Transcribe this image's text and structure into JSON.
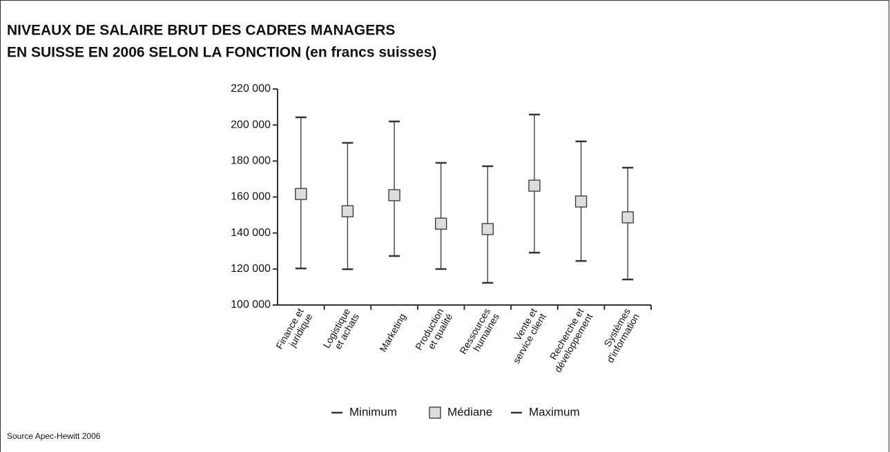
{
  "chart_data": {
    "type": "high-low-median",
    "title": [
      "NIVEAUX DE SALAIRE BRUT DES CADRES MANAGERS",
      "EN SUISSE EN 2006 SELON LA FONCTION (en francs suisses)"
    ],
    "source": "Source Apec-Hewitt 2006",
    "categories": [
      [
        "Finance et",
        "juridique"
      ],
      [
        "Logistique",
        "et achats"
      ],
      [
        "Marketing"
      ],
      [
        "Production",
        "et qualité"
      ],
      [
        "Ressources",
        "humaines"
      ],
      [
        "Vente et",
        "service client"
      ],
      [
        "Recherche et",
        "développement"
      ],
      [
        "Systèmes",
        "d'information"
      ]
    ],
    "series": [
      {
        "name": "Minimum",
        "color": "#333333",
        "values": [
          120300,
          119900,
          127200,
          120000,
          112300,
          129100,
          124500,
          114200
        ]
      },
      {
        "name": "Médiane",
        "color": "#dddddd",
        "values": [
          161700,
          152100,
          161000,
          145200,
          142200,
          166300,
          157500,
          148700
        ]
      },
      {
        "name": "Maximum",
        "color": "#333333",
        "values": [
          204300,
          190100,
          202000,
          179000,
          177100,
          205800,
          190900,
          176300
        ]
      }
    ],
    "ylim": [
      100000,
      220000
    ],
    "yticks": [
      {
        "value": 100000,
        "label": "100 000"
      },
      {
        "value": 120000,
        "label": "120 000"
      },
      {
        "value": 140000,
        "label": "140 000"
      },
      {
        "value": 160000,
        "label": "160 000"
      },
      {
        "value": 180000,
        "label": "180 000"
      },
      {
        "value": 200000,
        "label": "200 000"
      },
      {
        "value": 220000,
        "label": "220 000"
      }
    ],
    "grid": false,
    "legend": "bottom"
  }
}
